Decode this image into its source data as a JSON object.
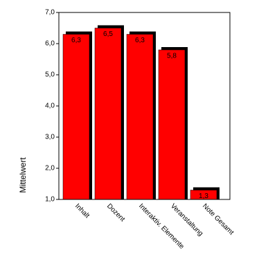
{
  "chart_data": {
    "type": "bar",
    "categories": [
      "Inhalt",
      "Dozent",
      "Interaktiv. Elemente",
      "Veranstaltung",
      "Note Gesamt"
    ],
    "values": [
      6.3,
      6.5,
      6.3,
      5.8,
      1.3
    ],
    "value_labels": [
      "6,3",
      "6,5",
      "6,3",
      "5,8",
      "1,3"
    ],
    "color": "#ff0000",
    "ylabel": "Mittelwert",
    "ylim": [
      1,
      7
    ],
    "yticks": [
      {
        "value": 1,
        "label": "1,0"
      },
      {
        "value": 2,
        "label": "2,0"
      },
      {
        "value": 3,
        "label": "3,0"
      },
      {
        "value": 4,
        "label": "4,0"
      },
      {
        "value": 5,
        "label": "5,0"
      },
      {
        "value": 6,
        "label": "6,0"
      },
      {
        "value": 7,
        "label": "7,0"
      }
    ]
  }
}
